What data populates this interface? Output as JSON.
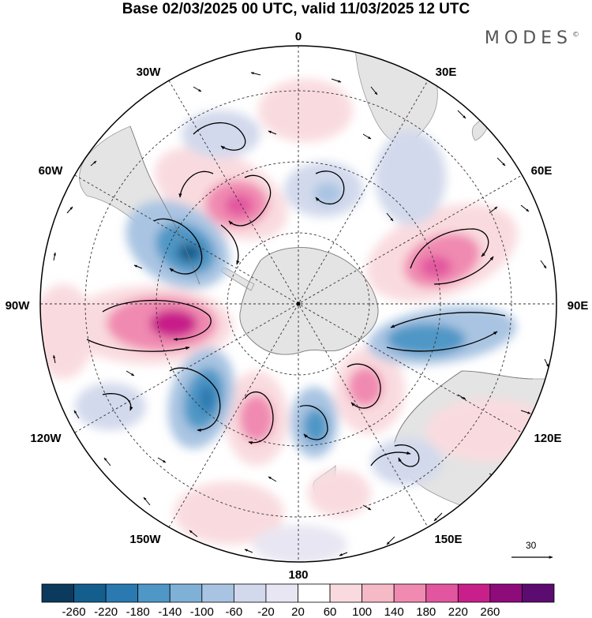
{
  "title": "Base 02/03/2025 00 UTC, valid 11/03/2025 12 UTC",
  "brand": "MODES",
  "brand_mark": "©",
  "longitude_labels": {
    "lon_0": "0",
    "lon_30e": "30E",
    "lon_60e": "60E",
    "lon_90e": "90E",
    "lon_120e": "120E",
    "lon_150e": "150E",
    "lon_180": "180",
    "lon_150w": "150W",
    "lon_120w": "120W",
    "lon_90w": "90W",
    "lon_60w": "60W",
    "lon_30w": "30W"
  },
  "reference_vector": {
    "value": "30"
  },
  "colorbar": {
    "ticks": [
      "-260",
      "-220",
      "-180",
      "-140",
      "-100",
      "-60",
      "-20",
      "20",
      "60",
      "100",
      "140",
      "180",
      "220",
      "260"
    ],
    "colors": [
      "#0b3a5c",
      "#145e8e",
      "#2a79b1",
      "#4f97c6",
      "#7fb0d6",
      "#a9c4e2",
      "#d2d9ec",
      "#e8e6f2",
      "#ffffff",
      "#f9dbdf",
      "#f6b9c6",
      "#f08ab1",
      "#e2569f",
      "#c81f8a",
      "#8e0b7a",
      "#5c0b70"
    ]
  },
  "colors": {
    "ocean": "#ffffff",
    "land": "#e4e4e4",
    "grid": "#333333",
    "positive": "#e2569f",
    "negative": "#2a79b1"
  }
}
